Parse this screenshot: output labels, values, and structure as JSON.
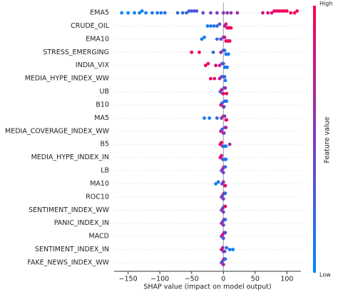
{
  "chart_data": {
    "type": "beeswarm",
    "xlabel": "SHAP value (impact on model output)",
    "colorbar_label": "Feature value",
    "colorbar_high": "High",
    "colorbar_low": "Low",
    "colormap": [
      "#008afb",
      "#7b3cc4",
      "#ff0052"
    ],
    "xlim": [
      -172,
      122
    ],
    "xticks": [
      {
        "value": -150,
        "label": "−150"
      },
      {
        "value": -100,
        "label": "−100"
      },
      {
        "value": -50,
        "label": "−50"
      },
      0,
      50,
      100
    ],
    "categories": [
      "EMA5",
      "CRUDE_OIL",
      "EMA10",
      "STRESS_EMERGING",
      "INDIA_VIX",
      "MEDIA_HYPE_INDEX_WW",
      "UB",
      "B10",
      "MA5",
      "MEDIA_COVERAGE_INDEX_WW",
      "B5",
      "MEDIA_HYPE_INDEX_IN",
      "LB",
      "MA10",
      "ROC10",
      "SENTIMENT_INDEX_WW",
      "PANIC_INDEX_IN",
      "MACD",
      "SENTIMENT_INDEX_IN",
      "FAKE_NEWS_INDEX_WW"
    ],
    "rows": [
      {
        "shap": [
          -160,
          -150,
          -140,
          -132,
          -128,
          -122,
          -112,
          -104,
          -98,
          -92,
          -72,
          -64,
          -58,
          -54,
          -50,
          -46,
          -42,
          -32,
          -20,
          -10,
          0,
          6,
          12,
          22,
          62,
          70,
          76,
          80,
          84,
          88,
          92,
          96,
          100,
          106,
          112,
          116
        ],
        "feature_value": [
          0.02,
          0.04,
          0.05,
          0.06,
          0.07,
          0.08,
          0.1,
          0.12,
          0.14,
          0.15,
          0.2,
          0.22,
          0.25,
          0.28,
          0.3,
          0.32,
          0.34,
          0.4,
          0.45,
          0.5,
          0.55,
          0.58,
          0.6,
          0.62,
          0.8,
          0.85,
          0.88,
          0.9,
          0.92,
          0.93,
          0.95,
          0.96,
          0.97,
          0.98,
          0.99,
          1.0
        ]
      },
      {
        "shap": [
          -25,
          -20,
          -15,
          -10,
          -6,
          2,
          4,
          6,
          8,
          10,
          12
        ],
        "feature_value": [
          0.05,
          0.1,
          0.15,
          0.2,
          0.3,
          0.7,
          0.8,
          0.85,
          0.9,
          0.95,
          1.0
        ]
      },
      {
        "shap": [
          -34,
          -30,
          -10,
          -4,
          0,
          2,
          4,
          6,
          8,
          10
        ],
        "feature_value": [
          0.05,
          0.08,
          0.2,
          0.4,
          0.6,
          0.75,
          0.85,
          0.9,
          0.95,
          1.0
        ]
      },
      {
        "shap": [
          -50,
          -38,
          -16,
          -4,
          0,
          2,
          4,
          6,
          8
        ],
        "feature_value": [
          1.0,
          0.95,
          0.2,
          0.6,
          0.4,
          0.2,
          0.15,
          0.1,
          0.05
        ]
      },
      {
        "shap": [
          -28,
          -24,
          -12,
          -6,
          -2,
          0,
          2,
          4,
          6
        ],
        "feature_value": [
          1.0,
          0.95,
          0.9,
          0.7,
          0.4,
          0.3,
          0.2,
          0.15,
          0.1
        ]
      },
      {
        "shap": [
          -20,
          -14,
          -6,
          -3,
          0,
          2,
          3
        ],
        "feature_value": [
          0.95,
          0.9,
          0.7,
          0.5,
          0.3,
          0.2,
          0.1
        ]
      },
      {
        "shap": [
          -5,
          -3,
          -1,
          0,
          1,
          3,
          5
        ],
        "feature_value": [
          0.2,
          0.8,
          0.5,
          0.9,
          0.3,
          0.6,
          0.95
        ]
      },
      {
        "shap": [
          -4,
          -2,
          0,
          1,
          2,
          4,
          5
        ],
        "feature_value": [
          0.9,
          0.3,
          0.6,
          0.5,
          0.2,
          0.4,
          0.1
        ]
      },
      {
        "shap": [
          -30,
          -22,
          -10,
          -3,
          0,
          2,
          4,
          5
        ],
        "feature_value": [
          0.05,
          0.1,
          0.2,
          0.6,
          0.7,
          0.5,
          0.8,
          0.9
        ]
      },
      {
        "shap": [
          -4,
          -2,
          0,
          1,
          2,
          4
        ],
        "feature_value": [
          0.9,
          0.3,
          0.6,
          0.5,
          0.2,
          0.7
        ]
      },
      {
        "shap": [
          -5,
          -3,
          -1,
          0,
          2,
          4,
          10
        ],
        "feature_value": [
          1.0,
          0.9,
          0.5,
          0.3,
          0.2,
          0.1,
          0.6
        ]
      },
      {
        "shap": [
          -5,
          -3,
          -1,
          0,
          2,
          4
        ],
        "feature_value": [
          0.95,
          0.8,
          0.4,
          0.3,
          0.2,
          0.1
        ]
      },
      {
        "shap": [
          -3,
          -1,
          0,
          1,
          3
        ],
        "feature_value": [
          0.3,
          0.6,
          0.5,
          0.8,
          0.2
        ]
      },
      {
        "shap": [
          -12,
          -8,
          -2,
          0,
          2,
          3
        ],
        "feature_value": [
          0.05,
          0.1,
          0.4,
          0.6,
          0.7,
          0.9
        ]
      },
      {
        "shap": [
          -3,
          -1,
          0,
          1,
          3
        ],
        "feature_value": [
          0.6,
          0.3,
          0.5,
          0.8,
          0.2
        ]
      },
      {
        "shap": [
          -3,
          -1,
          0,
          1,
          3
        ],
        "feature_value": [
          0.4,
          0.7,
          0.5,
          0.2,
          0.9
        ]
      },
      {
        "shap": [
          -3,
          -1,
          0,
          1,
          3
        ],
        "feature_value": [
          0.8,
          0.3,
          0.5,
          0.6,
          0.2
        ]
      },
      {
        "shap": [
          -3,
          -1,
          0,
          1,
          3
        ],
        "feature_value": [
          0.5,
          0.9,
          0.3,
          0.6,
          0.4
        ]
      },
      {
        "shap": [
          -3,
          -1,
          0,
          2,
          5,
          10,
          15
        ],
        "feature_value": [
          0.9,
          0.7,
          0.5,
          0.4,
          0.2,
          0.1,
          0.05
        ]
      },
      {
        "shap": [
          -3,
          -1,
          0,
          1,
          3
        ],
        "feature_value": [
          0.5,
          0.3,
          0.7,
          0.8,
          0.2
        ]
      }
    ]
  }
}
